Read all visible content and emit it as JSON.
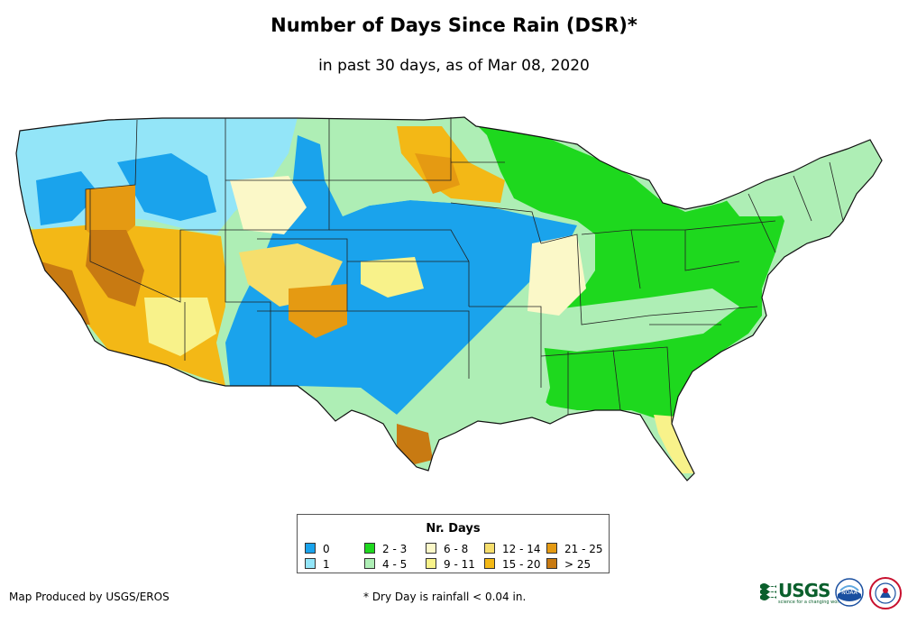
{
  "title": "Number of Days Since Rain (DSR)*",
  "subtitle": "in past 30 days, as of Mar 08, 2020",
  "legend": {
    "title": "Nr. Days",
    "items": [
      {
        "label": "0",
        "color": "#1aa3ec"
      },
      {
        "label": "1",
        "color": "#93e5f8"
      },
      {
        "label": "2 - 3",
        "color": "#1ed81e"
      },
      {
        "label": "4 - 5",
        "color": "#aeeeb5"
      },
      {
        "label": "6 - 8",
        "color": "#fbf8c8"
      },
      {
        "label": "9 - 11",
        "color": "#f8f28a"
      },
      {
        "label": "12 - 14",
        "color": "#f6de6c"
      },
      {
        "label": "15 - 20",
        "color": "#f3b816"
      },
      {
        "label": "21 - 25",
        "color": "#e59a12"
      },
      {
        "label": "> 25",
        "color": "#c87a12"
      }
    ]
  },
  "credit": "Map Produced by USGS/EROS",
  "footnote": "* Dry Day is rainfall < 0.04 in.",
  "logos": {
    "usgs": {
      "word": "USGS",
      "tagline": "science for a changing world",
      "color": "#0a5f2c"
    },
    "noaa": {
      "word": "NOAA",
      "color": "#1a4fa0"
    },
    "nws": {
      "color": "#c8102e"
    }
  }
}
